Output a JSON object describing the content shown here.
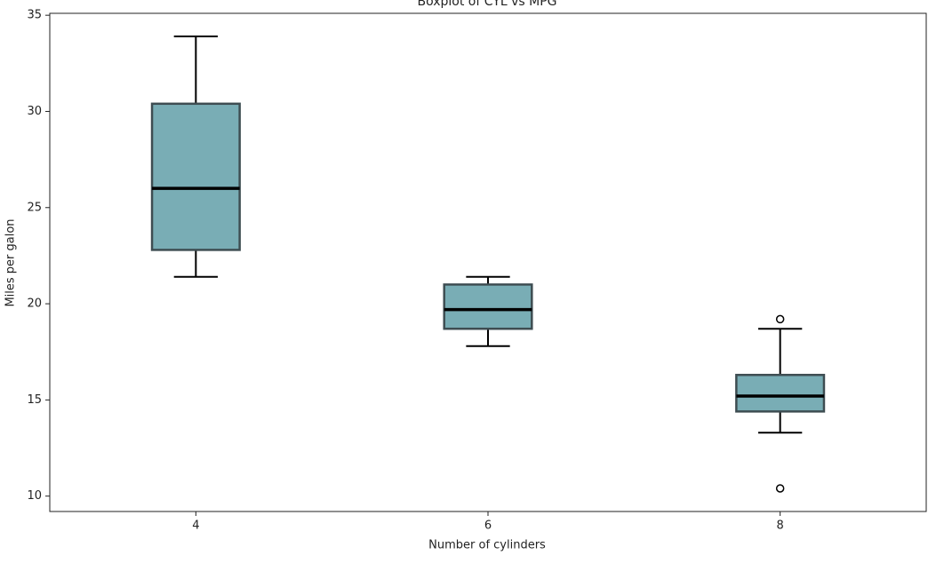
{
  "chart_data": {
    "type": "box",
    "title": "Boxplot of CYL vs MPG",
    "x_label": "Number of cylinders",
    "y_label": "Miles per galon",
    "categories": [
      "4",
      "6",
      "8"
    ],
    "boxes": [
      {
        "low": 21.4,
        "q1": 22.8,
        "median": 26.0,
        "q3": 30.4,
        "high": 33.9,
        "outliers": []
      },
      {
        "low": 17.8,
        "q1": 18.7,
        "median": 19.7,
        "q3": 21.0,
        "high": 21.4,
        "outliers": []
      },
      {
        "low": 13.3,
        "q1": 14.4,
        "median": 15.2,
        "q3": 16.3,
        "high": 18.7,
        "outliers": [
          19.2,
          10.4
        ]
      }
    ],
    "color": "#79adb5",
    "edge_color": "#3e4d52",
    "median_color": "#000000",
    "ylim": [
      9.2,
      35.1
    ],
    "yticks": [
      10,
      15,
      20,
      25,
      30,
      35
    ],
    "grid": false
  }
}
